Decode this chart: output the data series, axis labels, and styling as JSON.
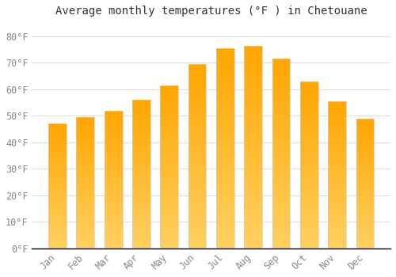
{
  "title": "Average monthly temperatures (°F ) in Chetouane",
  "months": [
    "Jan",
    "Feb",
    "Mar",
    "Apr",
    "May",
    "Jun",
    "Jul",
    "Aug",
    "Sep",
    "Oct",
    "Nov",
    "Dec"
  ],
  "values": [
    47,
    49.5,
    52,
    56,
    61.5,
    69.5,
    75.5,
    76.5,
    71.5,
    63,
    55.5,
    49
  ],
  "bar_color_top": "#FFA500",
  "bar_color_bottom": "#FFD060",
  "bar_edge_color": "#CCCCCC",
  "background_color": "#FFFFFF",
  "grid_color": "#DDDDDD",
  "text_color": "#888888",
  "axis_color": "#000000",
  "ylim": [
    0,
    85
  ],
  "yticks": [
    0,
    10,
    20,
    30,
    40,
    50,
    60,
    70,
    80
  ],
  "title_fontsize": 10,
  "tick_fontsize": 8.5
}
